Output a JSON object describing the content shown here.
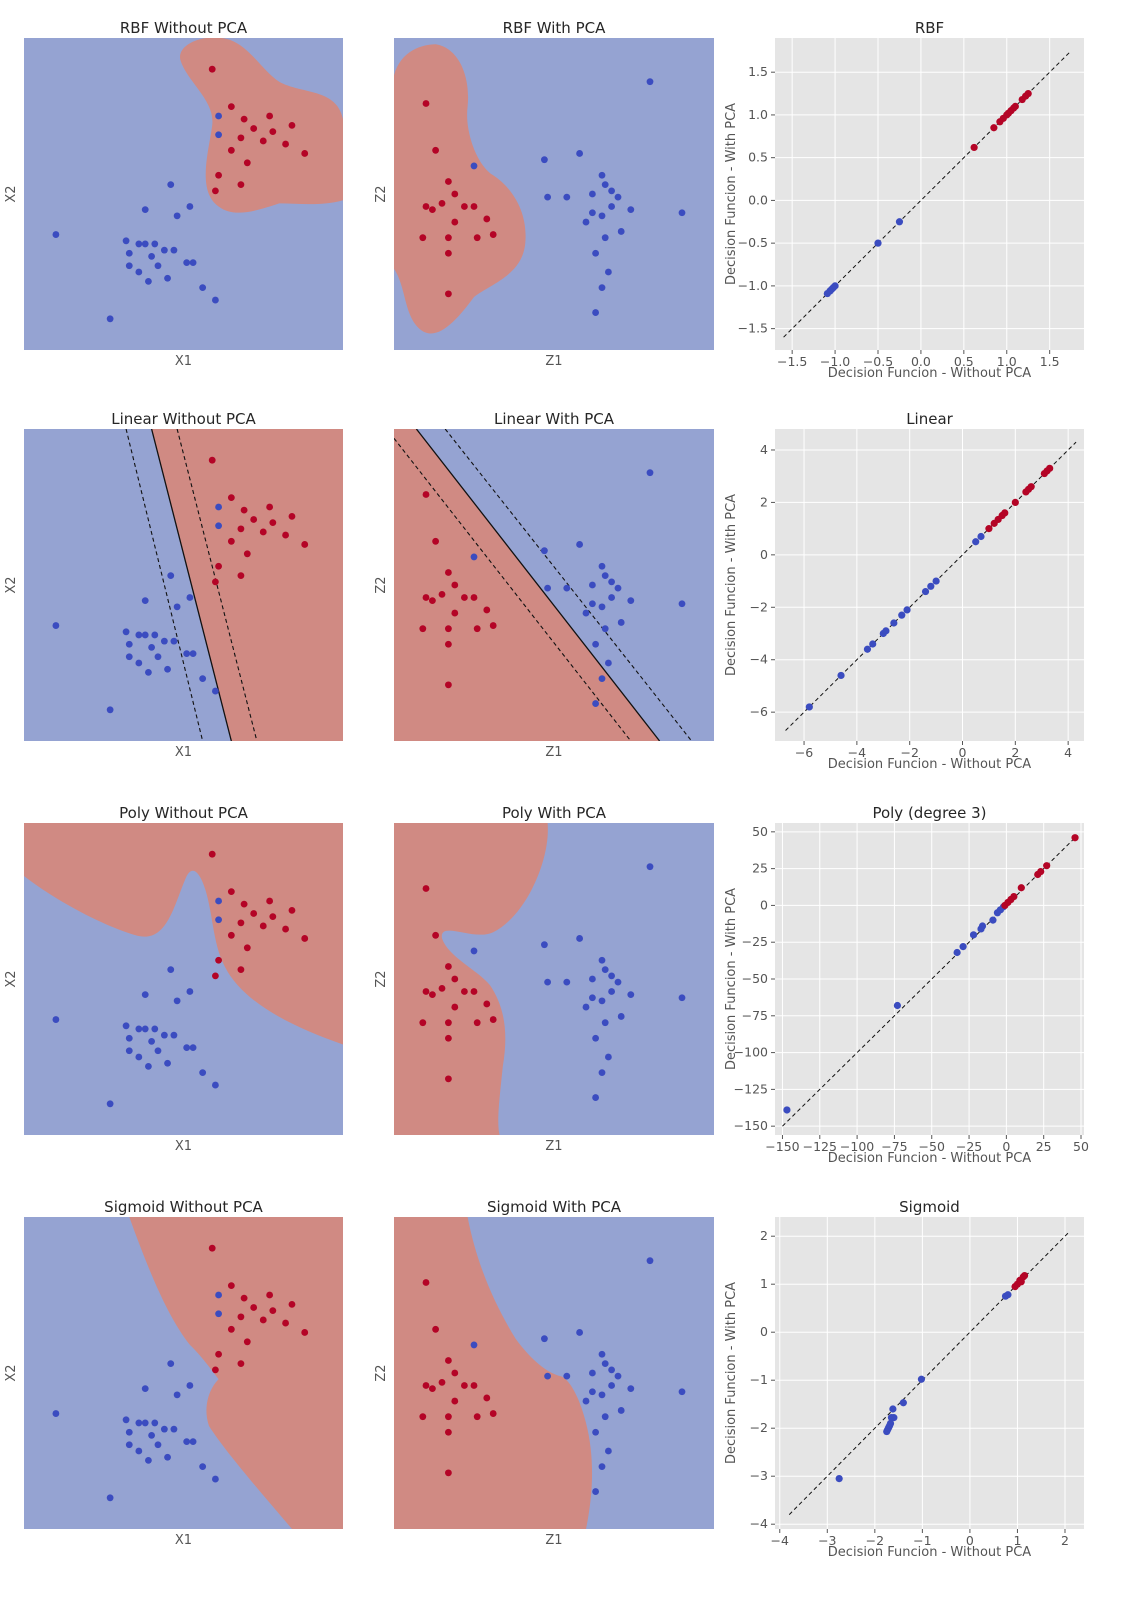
{
  "colors": {
    "blue_region": "#95a3d2",
    "red_region": "#d08a83",
    "blue_point": "#3b4cc0",
    "red_point": "#b40426",
    "plot_bg": "#e5e5e5",
    "grid": "#ffffff"
  },
  "chart_data": [
    {
      "type": "scatter",
      "kernel": "RBF",
      "variant": "without_pca",
      "title": "RBF Without PCA",
      "xlabel": "X1",
      "ylabel": "X2",
      "ticks_visible": false,
      "boundary": "rbf_blob"
    },
    {
      "type": "scatter",
      "kernel": "RBF",
      "variant": "with_pca",
      "title": "RBF With PCA",
      "xlabel": "Z1",
      "ylabel": "Z2",
      "ticks_visible": false,
      "boundary": "rbf_blob"
    },
    {
      "type": "scatter",
      "kernel": "RBF",
      "variant": "comparison",
      "title": "RBF",
      "xlabel": "Decision Funcion - Without PCA",
      "ylabel": "Decision Funcion - With PCA",
      "xlim": [
        -1.7,
        1.9
      ],
      "ylim": [
        -1.75,
        1.9
      ],
      "xticks": [
        -1.5,
        -1.0,
        -0.5,
        0.0,
        0.5,
        1.0,
        1.5
      ],
      "yticks": [
        -1.5,
        -1.0,
        -0.5,
        0.0,
        0.5,
        1.0,
        1.5
      ],
      "xtick_labels": [
        "−1.5",
        "−1.0",
        "−0.5",
        "0.0",
        "0.5",
        "1.0",
        "1.5"
      ],
      "ytick_labels": [
        "−1.5",
        "−1.0",
        "−0.5",
        "0.0",
        "0.5",
        "1.0",
        "1.5"
      ],
      "grid": true,
      "diagonal": [
        -1.6,
        1.75
      ],
      "x": [
        -1.09,
        -1.06,
        -1.04,
        -1.02,
        -1.0,
        -0.5,
        -0.25,
        0.62,
        0.85,
        0.92,
        0.96,
        1.0,
        1.02,
        1.05,
        1.08,
        1.1,
        1.18,
        1.22,
        1.25
      ],
      "y": [
        -1.09,
        -1.06,
        -1.04,
        -1.02,
        -1.0,
        -0.5,
        -0.25,
        0.62,
        0.85,
        0.92,
        0.96,
        1.0,
        1.02,
        1.05,
        1.08,
        1.1,
        1.18,
        1.22,
        1.25
      ],
      "labels": [
        "neg",
        "neg",
        "neg",
        "neg",
        "neg",
        "neg",
        "neg",
        "pos",
        "pos",
        "pos",
        "pos",
        "pos",
        "pos",
        "pos",
        "pos",
        "pos",
        "pos",
        "pos",
        "pos"
      ]
    },
    {
      "type": "scatter",
      "kernel": "Linear",
      "variant": "without_pca",
      "title": "Linear Without PCA",
      "xlabel": "X1",
      "ylabel": "X2",
      "ticks_visible": false,
      "boundary": "linear_margin"
    },
    {
      "type": "scatter",
      "kernel": "Linear",
      "variant": "with_pca",
      "title": "Linear With PCA",
      "xlabel": "Z1",
      "ylabel": "Z2",
      "ticks_visible": false,
      "boundary": "linear_margin"
    },
    {
      "type": "scatter",
      "kernel": "Linear",
      "variant": "comparison",
      "title": "Linear",
      "xlabel": "Decision Funcion - Without PCA",
      "ylabel": "Decision Funcion - With PCA",
      "xlim": [
        -7.1,
        4.6
      ],
      "ylim": [
        -7.1,
        4.8
      ],
      "xticks": [
        -6,
        -4,
        -2,
        0,
        2,
        4
      ],
      "yticks": [
        -6,
        -4,
        -2,
        0,
        2,
        4
      ],
      "xtick_labels": [
        "−6",
        "−4",
        "−2",
        "0",
        "2",
        "4"
      ],
      "ytick_labels": [
        "−6",
        "−4",
        "−2",
        "0",
        "2",
        "4"
      ],
      "grid": true,
      "diagonal": [
        -6.7,
        4.3
      ],
      "x": [
        -5.8,
        -4.6,
        -3.6,
        -3.4,
        -3.0,
        -2.9,
        -2.6,
        -2.3,
        -2.1,
        -1.4,
        -1.2,
        -1.0,
        0.5,
        0.7,
        1.0,
        1.2,
        1.35,
        1.5,
        1.6,
        2.0,
        2.4,
        2.5,
        2.6,
        3.1,
        3.2,
        3.3
      ],
      "y": [
        -5.8,
        -4.6,
        -3.6,
        -3.4,
        -3.0,
        -2.9,
        -2.6,
        -2.3,
        -2.1,
        -1.4,
        -1.2,
        -1.0,
        0.5,
        0.7,
        1.0,
        1.2,
        1.35,
        1.5,
        1.6,
        2.0,
        2.4,
        2.5,
        2.6,
        3.1,
        3.2,
        3.3
      ],
      "labels": [
        "neg",
        "neg",
        "neg",
        "neg",
        "neg",
        "neg",
        "neg",
        "neg",
        "neg",
        "neg",
        "neg",
        "neg",
        "neg",
        "neg",
        "pos",
        "pos",
        "pos",
        "pos",
        "pos",
        "pos",
        "pos",
        "pos",
        "pos",
        "pos",
        "pos",
        "pos"
      ]
    },
    {
      "type": "scatter",
      "kernel": "Poly",
      "variant": "without_pca",
      "title": "Poly Without PCA",
      "xlabel": "X1",
      "ylabel": "X2",
      "ticks_visible": false,
      "boundary": "poly_curve"
    },
    {
      "type": "scatter",
      "kernel": "Poly",
      "variant": "with_pca",
      "title": "Poly With PCA",
      "xlabel": "Z1",
      "ylabel": "Z2",
      "ticks_visible": false,
      "boundary": "poly_curve"
    },
    {
      "type": "scatter",
      "kernel": "Poly",
      "variant": "comparison",
      "title": "Poly (degree 3)",
      "xlabel": "Decision Funcion - Without PCA",
      "ylabel": "Decision Funcion - With PCA",
      "xlim": [
        -155,
        52
      ],
      "ylim": [
        -156,
        56
      ],
      "xticks": [
        -150,
        -125,
        -100,
        -75,
        -50,
        -25,
        0,
        25,
        50
      ],
      "yticks": [
        -150,
        -125,
        -100,
        -75,
        -50,
        -25,
        0,
        25,
        50
      ],
      "xtick_labels": [
        "−150",
        "−125",
        "−100",
        "−75",
        "−50",
        "−25",
        "0",
        "25",
        "50"
      ],
      "ytick_labels": [
        "−150",
        "−125",
        "−100",
        "−75",
        "−50",
        "−25",
        "0",
        "25",
        "50"
      ],
      "grid": true,
      "diagonal": [
        -150,
        46
      ],
      "x": [
        -147,
        -73,
        -33,
        -29,
        -22,
        -17,
        -16,
        -9,
        -6,
        -4,
        -2,
        -1,
        1,
        3,
        5,
        10,
        21,
        23,
        27,
        46
      ],
      "y": [
        -139,
        -68,
        -32,
        -28,
        -20,
        -16,
        -14,
        -10,
        -5,
        -3,
        -1,
        0,
        2,
        4,
        6,
        12,
        21,
        23,
        27,
        46
      ],
      "labels": [
        "neg",
        "neg",
        "neg",
        "neg",
        "neg",
        "neg",
        "neg",
        "neg",
        "neg",
        "neg",
        "neg",
        "pos",
        "pos",
        "pos",
        "pos",
        "pos",
        "pos",
        "pos",
        "pos",
        "pos"
      ]
    },
    {
      "type": "scatter",
      "kernel": "Sigmoid",
      "variant": "without_pca",
      "title": "Sigmoid Without PCA",
      "xlabel": "X1",
      "ylabel": "X2",
      "ticks_visible": false,
      "boundary": "sigmoid_curve"
    },
    {
      "type": "scatter",
      "kernel": "Sigmoid",
      "variant": "with_pca",
      "title": "Sigmoid With PCA",
      "xlabel": "Z1",
      "ylabel": "Z2",
      "ticks_visible": false,
      "boundary": "sigmoid_curve"
    },
    {
      "type": "scatter",
      "kernel": "Sigmoid",
      "variant": "comparison",
      "title": "Sigmoid",
      "xlabel": "Decision Funcion - Without PCA",
      "ylabel": "Decision Funcion - With PCA",
      "xlim": [
        -4.1,
        2.4
      ],
      "ylim": [
        -4.1,
        2.4
      ],
      "xticks": [
        -4,
        -3,
        -2,
        -1,
        0,
        1,
        2
      ],
      "yticks": [
        -4,
        -3,
        -2,
        -1,
        0,
        1,
        2
      ],
      "xtick_labels": [
        "−4",
        "−3",
        "−2",
        "−1",
        "0",
        "1",
        "2"
      ],
      "ytick_labels": [
        "−4",
        "−3",
        "−2",
        "−1",
        "0",
        "1",
        "2"
      ],
      "grid": true,
      "diagonal": [
        -3.8,
        2.1
      ],
      "x": [
        -2.75,
        -1.75,
        -1.73,
        -1.71,
        -1.69,
        -1.67,
        -1.65,
        -1.6,
        -1.62,
        -1.4,
        -1.02,
        0.75,
        0.8,
        0.95,
        1.0,
        1.05,
        1.08,
        1.12,
        1.15
      ],
      "y": [
        -3.05,
        -2.07,
        -2.03,
        -1.99,
        -1.95,
        -1.9,
        -1.78,
        -1.78,
        -1.6,
        -1.47,
        -0.98,
        0.75,
        0.78,
        0.95,
        1.0,
        1.08,
        1.05,
        1.15,
        1.18
      ],
      "labels": [
        "neg",
        "neg",
        "neg",
        "neg",
        "neg",
        "neg",
        "neg",
        "neg",
        "neg",
        "neg",
        "neg",
        "neg",
        "neg",
        "pos",
        "pos",
        "pos",
        "pos",
        "pos",
        "pos"
      ]
    }
  ]
}
